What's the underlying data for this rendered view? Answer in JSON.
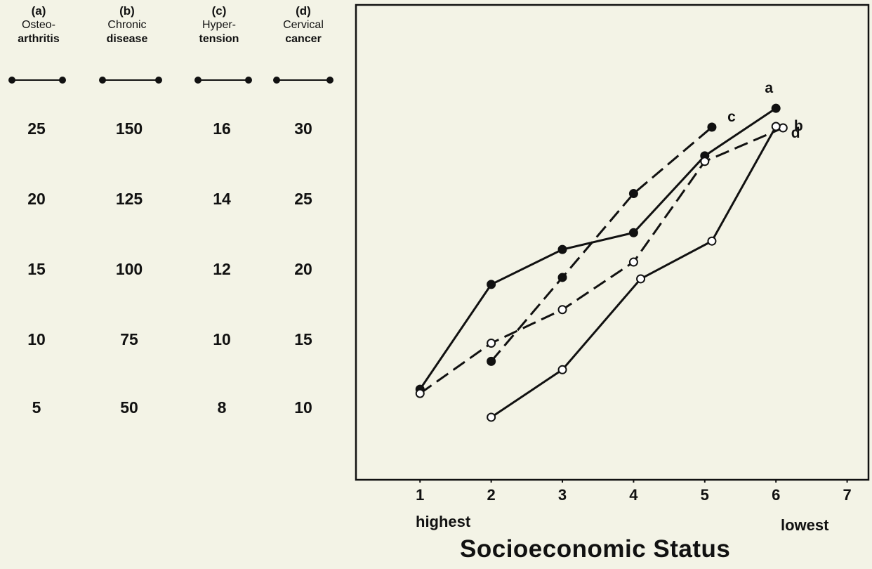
{
  "chart_data": {
    "type": "line",
    "xlabel": "Socioeconomic Status",
    "x_ticks": [
      "1",
      "2",
      "3",
      "4",
      "5",
      "6",
      "7"
    ],
    "x_end_labels": {
      "left": "highest",
      "right": "lowest"
    },
    "xlim": [
      0.1,
      7.3
    ],
    "axes": [
      {
        "letter": "(a)",
        "name_line1": "Osteo-",
        "name_line2": "arthritis",
        "ticks": [
          "25",
          "20",
          "15",
          "10",
          "5"
        ]
      },
      {
        "letter": "(b)",
        "name_line1": "Chronic",
        "name_line2": "disease",
        "ticks": [
          "150",
          "125",
          "100",
          "75",
          "50"
        ]
      },
      {
        "letter": "(c)",
        "name_line1": "Hyper-",
        "name_line2": "tension",
        "ticks": [
          "16",
          "14",
          "12",
          "10",
          "8"
        ]
      },
      {
        "letter": "(d)",
        "name_line1": "Cervical",
        "name_line2": "cancer",
        "ticks": [
          "30",
          "25",
          "20",
          "15",
          "10"
        ]
      }
    ],
    "series": [
      {
        "name": "a",
        "label": "a",
        "marker": "filled",
        "dash": false,
        "x": [
          1,
          2,
          3,
          4,
          5,
          6
        ],
        "y": [
          6.5,
          14,
          16.5,
          17.7,
          23.2,
          26.6
        ]
      },
      {
        "name": "b",
        "label": "b",
        "marker": "open",
        "dash": true,
        "x": [
          1,
          2,
          3,
          4,
          5,
          6.1
        ],
        "y": [
          56,
          74,
          86,
          103,
          139,
          151
        ]
      },
      {
        "name": "c",
        "label": "c",
        "marker": "filled",
        "dash": true,
        "x": [
          2,
          3,
          4,
          5.1
        ],
        "y": [
          9.4,
          11.8,
          14.2,
          16.1
        ]
      },
      {
        "name": "d",
        "label": "d",
        "marker": "open",
        "dash": false,
        "x": [
          2,
          3,
          4.1,
          5.1,
          6
        ],
        "y": [
          9.5,
          12.9,
          19.4,
          22.1,
          30.3
        ]
      }
    ]
  }
}
